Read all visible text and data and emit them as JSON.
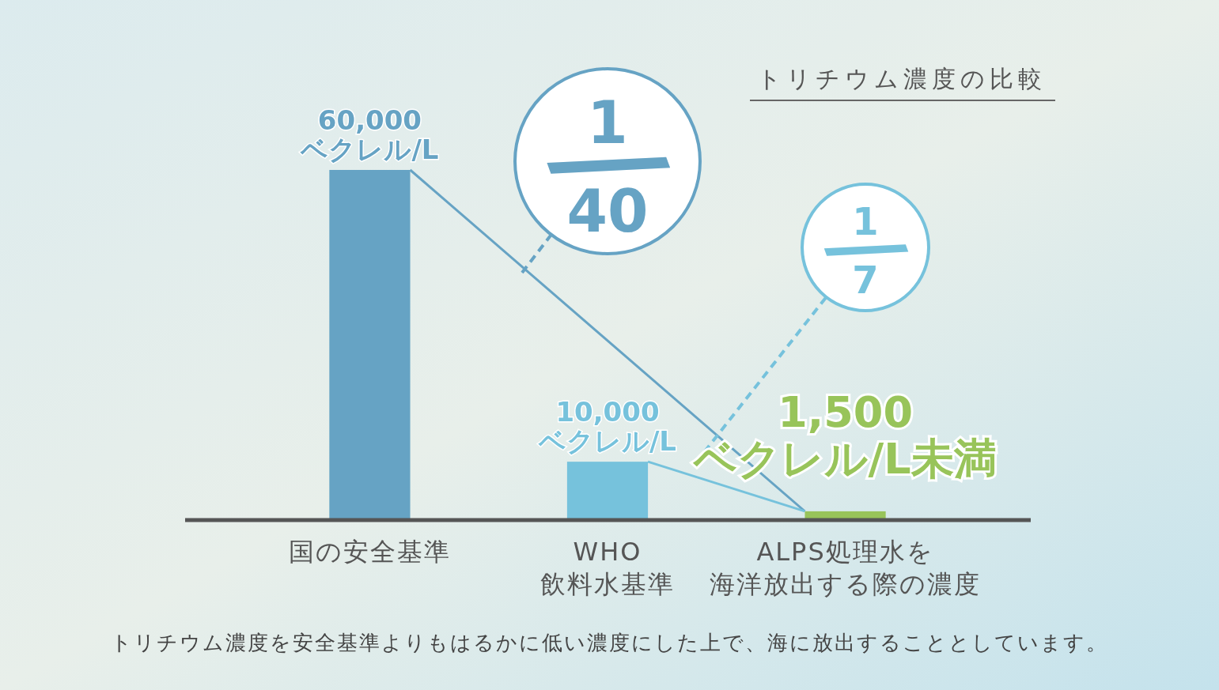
{
  "chart_data": {
    "type": "bar",
    "title": "トリチウム濃度の比較",
    "categories": [
      "国の安全基準",
      "WHO\n飲料水基準",
      "ALPS処理水を海洋放出する際の濃度"
    ],
    "values": [
      60000,
      10000,
      1500
    ],
    "colors": [
      "#66a3c4",
      "#76c2dc",
      "#98c45a"
    ],
    "value_labels": [
      "60,000\nベクレル/L",
      "10,000\nベクレル/L",
      "1,500\nベクレル/L未満"
    ],
    "annotations": [
      "1/40",
      "1/7",
      "トリチウム濃度を安全基準よりもはるかに低い濃度にした上で、海に放出することとしています。"
    ]
  }
}
